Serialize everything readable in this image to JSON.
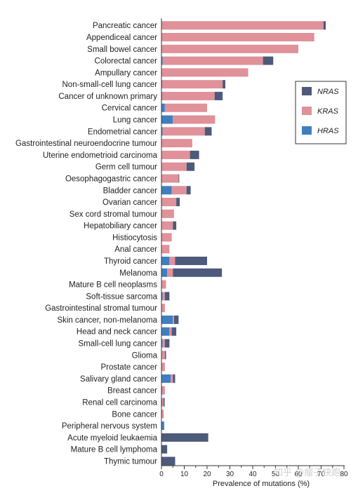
{
  "chart_data": {
    "type": "bar",
    "orientation": "horizontal",
    "stacked": true,
    "xlabel": "Prevalence of mutations (%)",
    "xlim": [
      0,
      80
    ],
    "xticks": [
      0,
      10,
      20,
      30,
      40,
      50,
      60,
      70,
      80
    ],
    "legend_position": "right",
    "categories": [
      "Pancreatic cancer",
      "Appendiceal cancer",
      "Small bowel cancer",
      "Colorectal cancer",
      "Ampullary cancer",
      "Non-small-cell lung cancer",
      "Cancer of unknown primary",
      "Cervical cancer",
      "Lung cancer",
      "Endometrial cancer",
      "Gastrointestinal neuroendocrine tumour",
      "Uterine endometrioid carcinoma",
      "Germ cell tumour",
      "Oesophagogastric cancer",
      "Bladder cancer",
      "Ovarian cancer",
      "Sex cord stromal tumour",
      "Hepatobiliary cancer",
      "Histiocytosis",
      "Anal cancer",
      "Thyroid cancer",
      "Melanoma",
      "Mature B cell neoplasms",
      "Soft-tissue sarcoma",
      "Gastrointestinal stromal tumour",
      "Skin cancer, non-melanoma",
      "Head and neck cancer",
      "Small-cell lung cancer",
      "Glioma",
      "Prostate cancer",
      "Salivary gland cancer",
      "Breast cancer",
      "Renal cell carcinoma",
      "Bone cancer",
      "Peripheral nervous system",
      "Acute myeloid leukaemia",
      "Mature B cell lymphoma",
      "Thymic tumour"
    ],
    "series": [
      {
        "name": "HRAS",
        "color": "#3f7fc0",
        "values": [
          0,
          0,
          0,
          0.5,
          0,
          0.3,
          0.3,
          1.5,
          5,
          0.5,
          0,
          0,
          0,
          0,
          4.5,
          0,
          0,
          0,
          0,
          0,
          3.5,
          2.5,
          0,
          0.5,
          0,
          5,
          3.5,
          0.5,
          0,
          0,
          4,
          0.3,
          0.3,
          0,
          1.2,
          0,
          0,
          0
        ]
      },
      {
        "name": "KRAS",
        "color": "#e0919a",
        "values": [
          71,
          67,
          60,
          44,
          38,
          26.5,
          23,
          18.5,
          18.5,
          18.5,
          13.5,
          12.5,
          11,
          7.5,
          6.5,
          6.5,
          5.5,
          5,
          4.5,
          3.5,
          2.5,
          2.5,
          2,
          1,
          1.5,
          0.5,
          1,
          1,
          1.5,
          1.5,
          1,
          1.2,
          0.6,
          1,
          0,
          0,
          0,
          0
        ]
      },
      {
        "name": "NRAS",
        "color": "#4d5a7a",
        "values": [
          1,
          0,
          0,
          4.5,
          0,
          1.2,
          3.5,
          0,
          0,
          3,
          0,
          4,
          3.5,
          0.3,
          1.8,
          1.5,
          0,
          1.5,
          0,
          0,
          14,
          21.5,
          0,
          2,
          0,
          2,
          2,
          2,
          0.5,
          0,
          1,
          0,
          0.5,
          0,
          0,
          20.5,
          2.5,
          6
        ]
      }
    ],
    "legend_order": [
      "NRAS",
      "KRAS",
      "HRAS"
    ]
  },
  "watermark": "知乎 @瘤子快跑"
}
